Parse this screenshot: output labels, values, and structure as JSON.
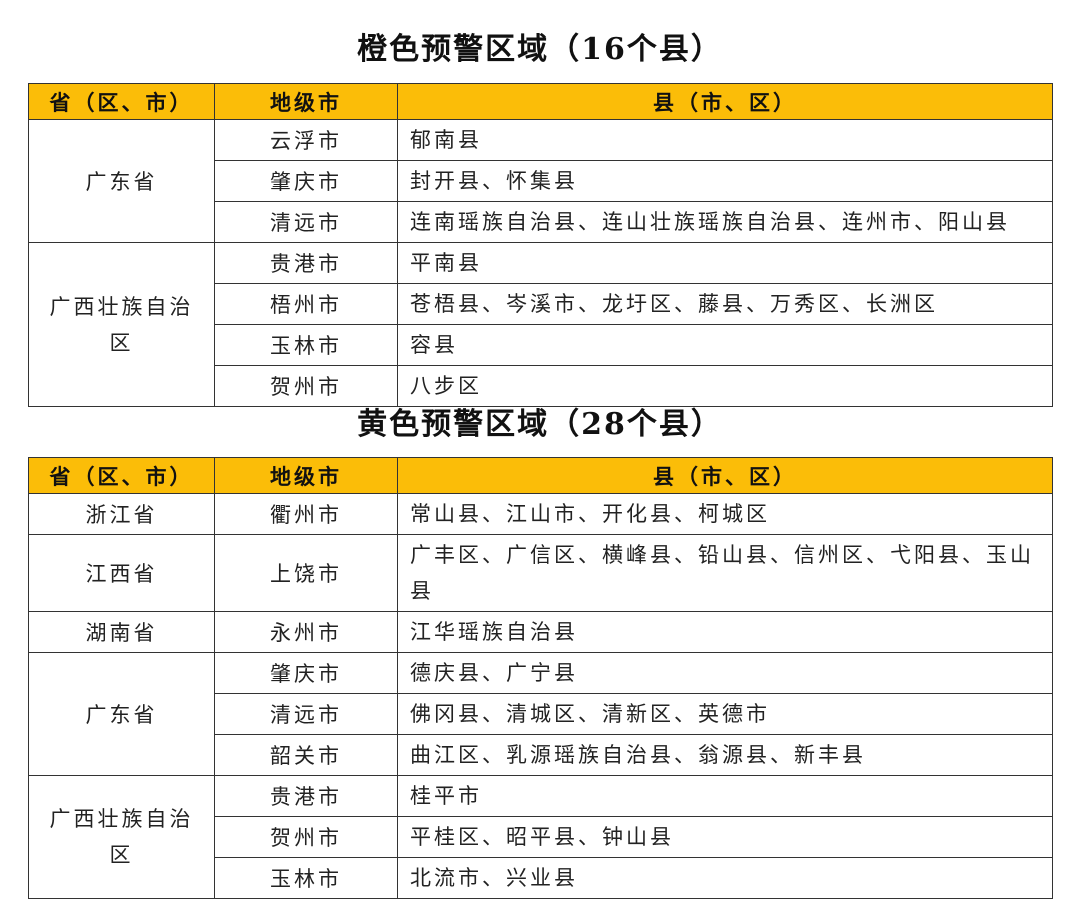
{
  "sections": [
    {
      "title": "橙色预警区域（16个县）",
      "header_color": "#fbbd08",
      "headers": [
        "省（区、市）",
        "地级市",
        "县（市、区）"
      ],
      "groups": [
        {
          "province": "广东省",
          "cities": [
            {
              "city": "云浮市",
              "counties": "郁南县"
            },
            {
              "city": "肇庆市",
              "counties": "封开县、怀集县"
            },
            {
              "city": "清远市",
              "counties": "连南瑶族自治县、连山壮族瑶族自治县、连州市、阳山县"
            }
          ]
        },
        {
          "province": "广西壮族自治区",
          "cities": [
            {
              "city": "贵港市",
              "counties": "平南县"
            },
            {
              "city": "梧州市",
              "counties": "苍梧县、岑溪市、龙圩区、藤县、万秀区、长洲区"
            },
            {
              "city": "玉林市",
              "counties": "容县"
            },
            {
              "city": "贺州市",
              "counties": "八步区"
            }
          ]
        }
      ]
    },
    {
      "title": "黄色预警区域（28个县）",
      "header_color": "#fbbd08",
      "headers": [
        "省（区、市）",
        "地级市",
        "县（市、区）"
      ],
      "groups": [
        {
          "province": "浙江省",
          "cities": [
            {
              "city": "衢州市",
              "counties": "常山县、江山市、开化县、柯城区"
            }
          ]
        },
        {
          "province": "江西省",
          "cities": [
            {
              "city": "上饶市",
              "counties": "广丰区、广信区、横峰县、铅山县、信州区、弋阳县、玉山县"
            }
          ]
        },
        {
          "province": "湖南省",
          "cities": [
            {
              "city": "永州市",
              "counties": "江华瑶族自治县"
            }
          ]
        },
        {
          "province": "广东省",
          "cities": [
            {
              "city": "肇庆市",
              "counties": "德庆县、广宁县"
            },
            {
              "city": "清远市",
              "counties": "佛冈县、清城区、清新区、英德市"
            },
            {
              "city": "韶关市",
              "counties": "曲江区、乳源瑶族自治县、翁源县、新丰县"
            }
          ]
        },
        {
          "province": "广西壮族自治区",
          "cities": [
            {
              "city": "贵港市",
              "counties": "桂平市"
            },
            {
              "city": "贺州市",
              "counties": "平桂区、昭平县、钟山县"
            },
            {
              "city": "玉林市",
              "counties": "北流市、兴业县"
            }
          ]
        }
      ]
    }
  ]
}
